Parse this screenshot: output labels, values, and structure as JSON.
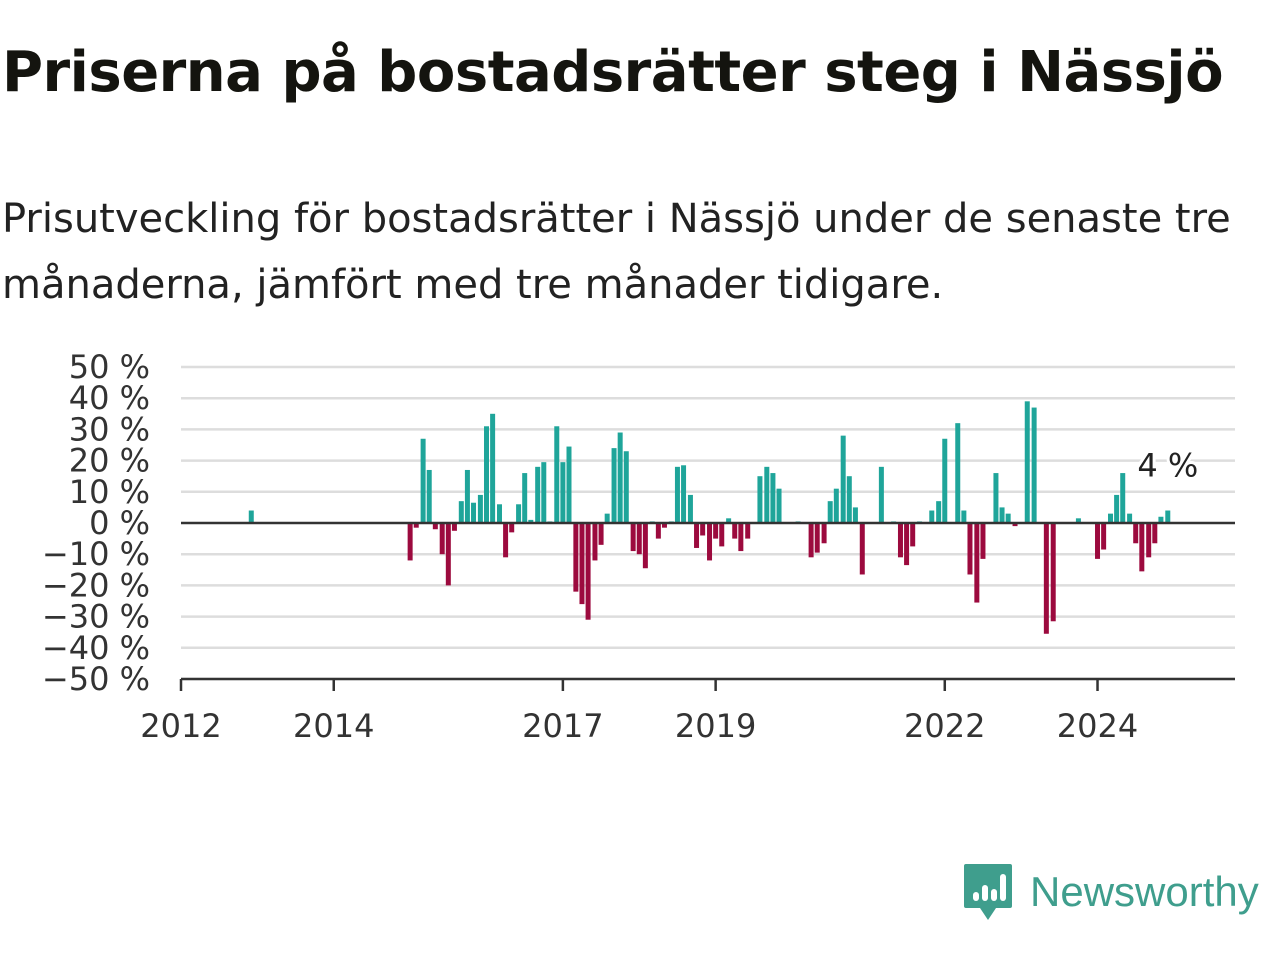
{
  "header": {
    "title": "Priserna på bostadsrätter steg i Nässjö",
    "subtitle": "Prisutveckling för bostadsrätter i Nässjö under de senaste tre månaderna, jämfört med tre månader tidigare."
  },
  "brand": {
    "name": "Newsworthy",
    "icon": "newsworthy-logo-icon",
    "color": "#3f9e8d"
  },
  "colors": {
    "positive": "#1fa59a",
    "negative": "#9c0a3e",
    "grid": "#dddddd",
    "axis": "#333333"
  },
  "chart_data": {
    "type": "bar",
    "x_unit": "year",
    "y_unit": "%",
    "xlim": [
      2012.0,
      2025.8
    ],
    "ylim": [
      -50,
      50
    ],
    "y_ticks": [
      50,
      40,
      30,
      20,
      10,
      0,
      -10,
      -20,
      -30,
      -40,
      -50
    ],
    "y_tick_labels": [
      "50 %",
      "40 %",
      "30 %",
      "20 %",
      "10 %",
      "0 %",
      "−10 %",
      "−20 %",
      "−30 %",
      "−40 %",
      "−50 %"
    ],
    "x_ticks": [
      2012,
      2014,
      2017,
      2019,
      2022,
      2024
    ],
    "x_tick_labels": [
      "2012",
      "2014",
      "2017",
      "2019",
      "2022",
      "2024"
    ],
    "last_value_label": "4 %",
    "grid": true,
    "series": [
      {
        "points": [
          [
            2012.92,
            4
          ],
          [
            2015.0,
            -12
          ],
          [
            2015.08,
            -1.5
          ],
          [
            2015.17,
            27
          ],
          [
            2015.25,
            17
          ],
          [
            2015.33,
            -2
          ],
          [
            2015.42,
            -10
          ],
          [
            2015.5,
            -20
          ],
          [
            2015.58,
            -2.5
          ],
          [
            2015.67,
            7
          ],
          [
            2015.75,
            17
          ],
          [
            2015.83,
            6.5
          ],
          [
            2015.92,
            9
          ],
          [
            2016.0,
            31
          ],
          [
            2016.08,
            35
          ],
          [
            2016.17,
            6
          ],
          [
            2016.25,
            -11
          ],
          [
            2016.33,
            -3
          ],
          [
            2016.42,
            6
          ],
          [
            2016.5,
            16
          ],
          [
            2016.58,
            1
          ],
          [
            2016.67,
            18
          ],
          [
            2016.75,
            19.5
          ],
          [
            2016.83,
            0.5
          ],
          [
            2016.92,
            31
          ],
          [
            2017.0,
            19.5
          ],
          [
            2017.08,
            24.5
          ],
          [
            2017.17,
            -22
          ],
          [
            2017.25,
            -26
          ],
          [
            2017.33,
            -31
          ],
          [
            2017.42,
            -12
          ],
          [
            2017.5,
            -7
          ],
          [
            2017.58,
            3
          ],
          [
            2017.67,
            24
          ],
          [
            2017.75,
            29
          ],
          [
            2017.83,
            23
          ],
          [
            2017.92,
            -9
          ],
          [
            2018.0,
            -10
          ],
          [
            2018.08,
            -14.5
          ],
          [
            2018.17,
            0.5
          ],
          [
            2018.25,
            -5
          ],
          [
            2018.33,
            -1.5
          ],
          [
            2018.42,
            0.5
          ],
          [
            2018.5,
            18
          ],
          [
            2018.58,
            18.5
          ],
          [
            2018.67,
            9
          ],
          [
            2018.75,
            -8
          ],
          [
            2018.83,
            -4
          ],
          [
            2018.92,
            -12
          ],
          [
            2019.0,
            -5
          ],
          [
            2019.08,
            -7.5
          ],
          [
            2019.17,
            1.5
          ],
          [
            2019.25,
            -5
          ],
          [
            2019.33,
            -9
          ],
          [
            2019.42,
            -5
          ],
          [
            2019.58,
            15
          ],
          [
            2019.67,
            18
          ],
          [
            2019.75,
            16
          ],
          [
            2019.83,
            11
          ],
          [
            2020.08,
            0.5
          ],
          [
            2020.25,
            -11
          ],
          [
            2020.33,
            -9.5
          ],
          [
            2020.42,
            -6.5
          ],
          [
            2020.5,
            7
          ],
          [
            2020.58,
            11
          ],
          [
            2020.67,
            28
          ],
          [
            2020.75,
            15
          ],
          [
            2020.83,
            5
          ],
          [
            2020.92,
            -16.5
          ],
          [
            2021.17,
            18
          ],
          [
            2021.33,
            0.5
          ],
          [
            2021.42,
            -11
          ],
          [
            2021.5,
            -13.5
          ],
          [
            2021.58,
            -7.5
          ],
          [
            2021.67,
            0.5
          ],
          [
            2021.83,
            4
          ],
          [
            2021.92,
            7
          ],
          [
            2022.0,
            27
          ],
          [
            2022.17,
            32
          ],
          [
            2022.25,
            4
          ],
          [
            2022.33,
            -16.5
          ],
          [
            2022.42,
            -25.5
          ],
          [
            2022.5,
            -11.5
          ],
          [
            2022.67,
            16
          ],
          [
            2022.75,
            5
          ],
          [
            2022.83,
            3
          ],
          [
            2022.92,
            -1
          ],
          [
            2023.08,
            39
          ],
          [
            2023.17,
            37
          ],
          [
            2023.33,
            -35.5
          ],
          [
            2023.42,
            -31.5
          ],
          [
            2023.75,
            1.5
          ],
          [
            2024.0,
            -11.5
          ],
          [
            2024.08,
            -8.5
          ],
          [
            2024.17,
            3
          ],
          [
            2024.25,
            9
          ],
          [
            2024.33,
            16
          ],
          [
            2024.42,
            3
          ],
          [
            2024.5,
            -6.5
          ],
          [
            2024.58,
            -15.5
          ],
          [
            2024.67,
            -11
          ],
          [
            2024.75,
            -6.5
          ],
          [
            2024.83,
            2
          ],
          [
            2024.92,
            4
          ]
        ]
      }
    ]
  }
}
